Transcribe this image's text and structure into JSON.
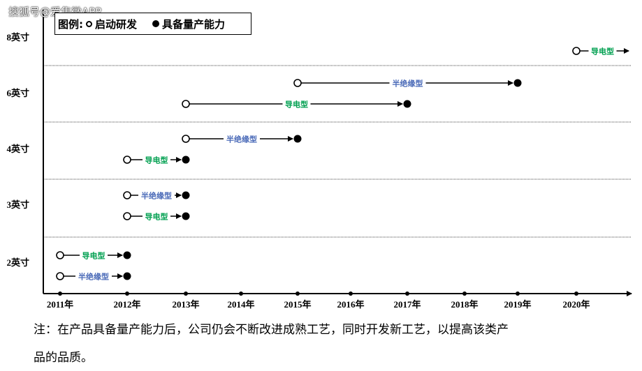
{
  "watermark": "搜狐号@爱集微APP",
  "legend": {
    "title": "图例:",
    "open_label": "启动研发",
    "filled_label": "具备量产能力"
  },
  "note": {
    "line1": "注：在产品具备量产能力后，公司仍会不断改进成熟工艺，同时开发新工艺，以提高该类产",
    "line2": "品的品质。"
  },
  "colors": {
    "conductive": "#00a050",
    "semi_insulating": "#4a6ab8"
  },
  "chart_data": {
    "type": "timeline",
    "x_ticks": [
      "2011年",
      "2012年",
      "2013年",
      "2014年",
      "2015年",
      "2016年",
      "2017年",
      "2018年",
      "2019年",
      "2020年"
    ],
    "y_groups": [
      "8英寸",
      "6英寸",
      "4英寸",
      "3英寸",
      "2英寸"
    ],
    "series": [
      {
        "size": "2英寸",
        "type": "半绝缘型",
        "start": "2011年",
        "end": "2012年",
        "end_kind": "filled"
      },
      {
        "size": "2英寸",
        "type": "导电型",
        "start": "2011年",
        "end": "2012年",
        "end_kind": "filled"
      },
      {
        "size": "3英寸",
        "type": "导电型",
        "start": "2012年",
        "end": "2013年",
        "end_kind": "filled"
      },
      {
        "size": "3英寸",
        "type": "半绝缘型",
        "start": "2012年",
        "end": "2013年",
        "end_kind": "filled"
      },
      {
        "size": "4英寸",
        "type": "导电型",
        "start": "2012年",
        "end": "2013年",
        "end_kind": "filled"
      },
      {
        "size": "4英寸",
        "type": "半绝缘型",
        "start": "2013年",
        "end": "2015年",
        "end_kind": "filled"
      },
      {
        "size": "6英寸",
        "type": "导电型",
        "start": "2013年",
        "end": "2017年",
        "end_kind": "filled"
      },
      {
        "size": "6英寸",
        "type": "半绝缘型",
        "start": "2015年",
        "end": "2019年",
        "end_kind": "filled"
      },
      {
        "size": "8英寸",
        "type": "导电型",
        "start": "2020年",
        "end": null,
        "end_kind": "arrow"
      }
    ]
  }
}
